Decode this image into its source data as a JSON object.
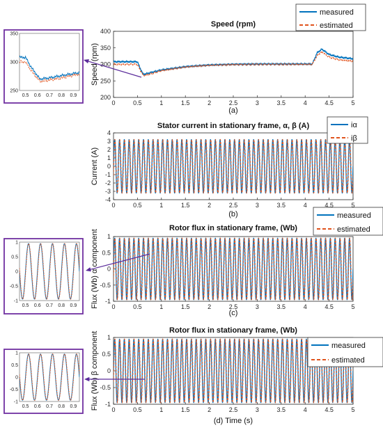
{
  "colors": {
    "measured": "#0072BD",
    "estimated": "#E0521C",
    "inset_border": "#7030A0",
    "arrow": "#5B2C9B",
    "axis": "#262626"
  },
  "chart_data": [
    {
      "id": "speed",
      "type": "line",
      "title": "Speed (rpm)",
      "ylabel": "Speed (rpm)",
      "caption": "(a)",
      "xlim": [
        0,
        5
      ],
      "ylim": [
        200,
        400
      ],
      "xticks": [
        "0",
        "0.5",
        "1",
        "1.5",
        "2",
        "2.5",
        "3",
        "3.5",
        "4",
        "4.5",
        "5"
      ],
      "yticks": [
        "200",
        "250",
        "300",
        "350",
        "400"
      ],
      "legend": {
        "position": "top-right",
        "entries": [
          "measured",
          "estimated"
        ]
      },
      "series": [
        {
          "name": "measured",
          "style": "solid",
          "x": [
            0,
            0.5,
            0.55,
            0.62,
            0.7,
            0.8,
            1.0,
            1.5,
            2.0,
            2.5,
            3.0,
            3.5,
            4.0,
            4.15,
            4.25,
            4.35,
            4.5,
            4.7,
            5.0
          ],
          "y": [
            308,
            308,
            290,
            270,
            272,
            276,
            283,
            293,
            298,
            300,
            301,
            301,
            301,
            301,
            335,
            346,
            330,
            322,
            317
          ]
        },
        {
          "name": "estimated",
          "style": "dashed",
          "x": [
            0,
            0.5,
            0.55,
            0.62,
            0.7,
            0.8,
            1.0,
            1.5,
            2.0,
            2.5,
            3.0,
            3.5,
            4.0,
            4.15,
            4.25,
            4.35,
            4.5,
            4.7,
            5.0
          ],
          "y": [
            300,
            300,
            284,
            266,
            268,
            272,
            281,
            292,
            297,
            299,
            300,
            300,
            300,
            300,
            327,
            338,
            322,
            314,
            310
          ]
        }
      ]
    },
    {
      "id": "current",
      "type": "line",
      "title": "Stator current in stationary frame, α, β (A)",
      "ylabel": "Current (A)",
      "caption": "(b)",
      "xlim": [
        0,
        5
      ],
      "ylim": [
        -4,
        4
      ],
      "xticks": [
        "0",
        "0.5",
        "1",
        "1.5",
        "2",
        "2.5",
        "3",
        "3.5",
        "4",
        "4.5",
        "5"
      ],
      "yticks": [
        "-4",
        "-3",
        "-2",
        "-1",
        "0",
        "1",
        "2",
        "3",
        "4"
      ],
      "legend": {
        "position": "top-right",
        "entries": [
          "iα",
          "iβ"
        ]
      },
      "waveform": {
        "amplitude": 3.2,
        "frequency_hz": 10
      },
      "series": [
        {
          "name": "iα",
          "style": "solid"
        },
        {
          "name": "iβ",
          "style": "dashed"
        }
      ]
    },
    {
      "id": "flux_alpha",
      "type": "line",
      "title": "Rotor flux in stationary frame, (Wb)",
      "ylabel": "Flux (Wb) α component",
      "caption": "(c)",
      "xlim": [
        0,
        5
      ],
      "ylim": [
        -1,
        1
      ],
      "xticks": [
        "0",
        "0.5",
        "1",
        "1.5",
        "2",
        "2.5",
        "3",
        "3.5",
        "4",
        "4.5",
        "5"
      ],
      "yticks": [
        "-1",
        "-0.5",
        "0",
        "0.5",
        "1"
      ],
      "legend": {
        "position": "top-right",
        "entries": [
          "measured",
          "estimated"
        ]
      },
      "waveform": {
        "amplitude": 0.95,
        "frequency_hz": 10
      },
      "series": [
        {
          "name": "measured",
          "style": "solid"
        },
        {
          "name": "estimated",
          "style": "dashed"
        }
      ]
    },
    {
      "id": "flux_beta",
      "type": "line",
      "title": "Rotor flux in stationary frame, (Wb)",
      "ylabel": "Flux (Wb) β component",
      "caption": "(d) Time (s)",
      "xlim": [
        0,
        5
      ],
      "ylim": [
        -1,
        1
      ],
      "xticks": [
        "0",
        "0.5",
        "1",
        "1.5",
        "2",
        "2.5",
        "3",
        "3.5",
        "4",
        "4.5",
        "5"
      ],
      "yticks": [
        "-1",
        "-0.5",
        "0",
        "0.5",
        "1"
      ],
      "legend": {
        "position": "top-right",
        "entries": [
          "measured",
          "estimated"
        ]
      },
      "waveform": {
        "amplitude": 0.95,
        "frequency_hz": 10
      },
      "series": [
        {
          "name": "measured",
          "style": "solid"
        },
        {
          "name": "estimated",
          "style": "dashed"
        }
      ]
    }
  ],
  "insets": [
    {
      "id": "inset_speed",
      "xlim": [
        0.45,
        0.95
      ],
      "ylim": [
        250,
        350
      ],
      "xticks": [
        "0.5",
        "0.6",
        "0.7",
        "0.8",
        "0.9"
      ],
      "yticks": [
        "250",
        "300",
        "350"
      ]
    },
    {
      "id": "inset_flux_alpha",
      "xlim": [
        0.45,
        0.95
      ],
      "ylim": [
        -1,
        1
      ],
      "xticks": [
        "0.5",
        "0.6",
        "0.7",
        "0.8",
        "0.9"
      ],
      "yticks": [
        "-1",
        "-0.5",
        "0",
        "0.5",
        "1"
      ]
    },
    {
      "id": "inset_flux_beta",
      "xlim": [
        0.45,
        0.95
      ],
      "ylim": [
        -1,
        1
      ],
      "xticks": [
        "0.5",
        "0.6",
        "0.7",
        "0.8",
        "0.9"
      ],
      "yticks": [
        "-1",
        "-0.5",
        "0",
        "0.5",
        "1"
      ]
    }
  ]
}
